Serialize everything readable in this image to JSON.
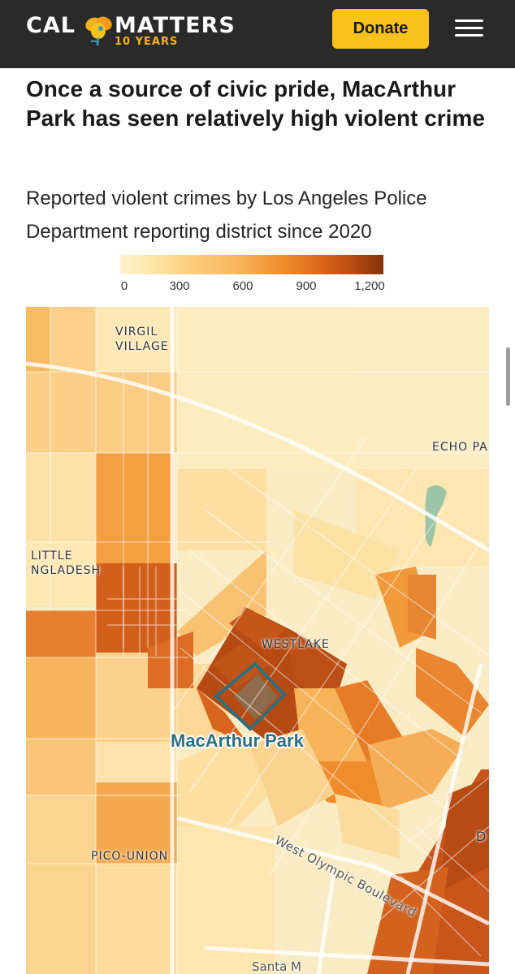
{
  "header": {
    "logo": {
      "left": "CAL",
      "right": "MATTERS",
      "sub": "10 YEARS"
    },
    "donate_label": "Donate",
    "colors": {
      "bar": "#2a2a2a",
      "donate": "#f7c21c",
      "logo_accent": "#f5b21a"
    }
  },
  "article": {
    "title": "Once a source of civic pride, MacArthur Park has seen relatively high violent crime",
    "subtitle": "Reported violent crimes by Los Angeles Police Department reporting district since 2020"
  },
  "legend": {
    "ticks": [
      "0",
      "300",
      "600",
      "900",
      "1,200"
    ],
    "min": 0,
    "max": 1200,
    "colors": [
      "#fef3cf",
      "#fcd183",
      "#ef8c2b",
      "#d8621a",
      "#833109"
    ]
  },
  "map": {
    "labels": {
      "virgil_line1": "VIRGIL",
      "virgil_line2": "VILLAGE",
      "echo": "ECHO PA",
      "little_line1": "LITTLE",
      "little_line2": "NGLADESH",
      "westlake": "WESTLAKE",
      "macarthur": "MacArthur Park",
      "pico": "PICO-UNION",
      "olympic": "West Olympic Boulevard",
      "santa": "Santa M",
      "d_label": "D"
    },
    "highlight_color": "#2e6f7f"
  }
}
